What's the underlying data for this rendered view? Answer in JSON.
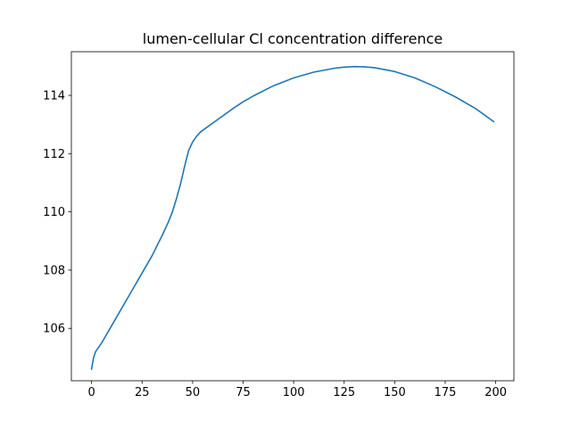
{
  "chart_data": {
    "type": "line",
    "title": "lumen-cellular Cl concentration difference",
    "xlabel": "",
    "ylabel": "",
    "xlim": [
      -10,
      209
    ],
    "ylim": [
      104.2,
      115.5
    ],
    "xticks": [
      0,
      25,
      50,
      75,
      100,
      125,
      150,
      175,
      200
    ],
    "yticks": [
      106,
      108,
      110,
      112,
      114
    ],
    "grid": false,
    "legend": "none",
    "series": [
      {
        "color": "#1f77b4",
        "x": [
          0,
          1,
          2,
          5,
          10,
          15,
          20,
          25,
          30,
          35,
          38,
          40,
          42,
          44,
          46,
          48,
          50,
          52,
          54,
          56,
          60,
          65,
          70,
          75,
          80,
          90,
          100,
          110,
          120,
          125,
          130,
          135,
          140,
          150,
          160,
          170,
          180,
          190,
          199
        ],
        "y": [
          104.6,
          105.0,
          105.2,
          105.5,
          106.1,
          106.7,
          107.3,
          107.9,
          108.5,
          109.2,
          109.65,
          110.0,
          110.45,
          110.95,
          111.55,
          112.1,
          112.4,
          112.6,
          112.75,
          112.85,
          113.05,
          113.3,
          113.55,
          113.78,
          113.98,
          114.33,
          114.6,
          114.8,
          114.93,
          114.97,
          114.99,
          114.98,
          114.95,
          114.82,
          114.6,
          114.3,
          113.95,
          113.55,
          113.1
        ]
      }
    ]
  }
}
